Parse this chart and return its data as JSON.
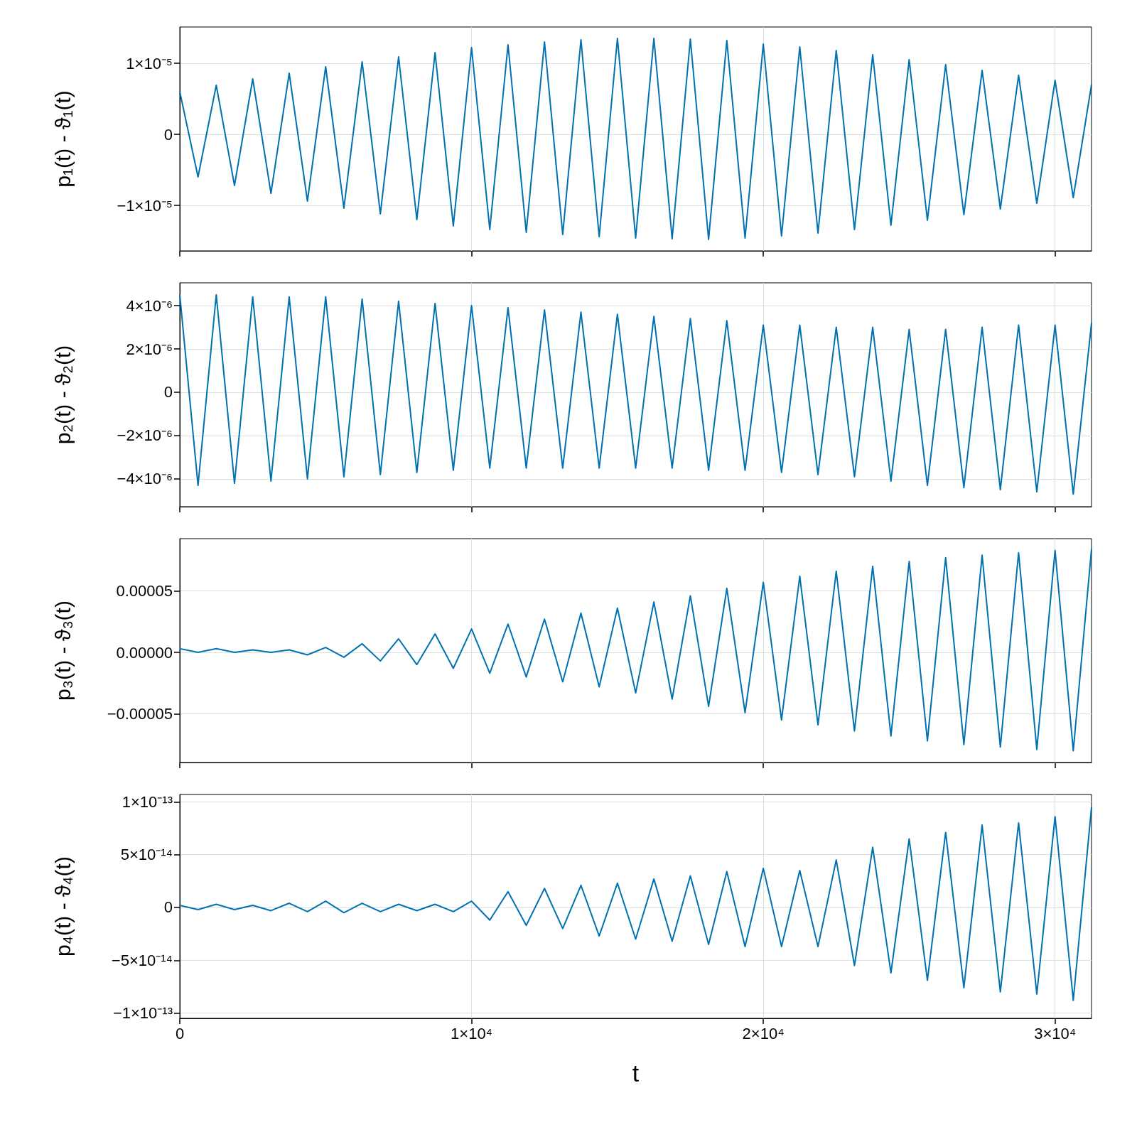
{
  "chart_data": [
    {
      "type": "line",
      "ylabel": "p₁(t) - ϑ₁(t)",
      "xlim": [
        0,
        31250
      ],
      "xticks": [
        {
          "value": 0,
          "label": null
        },
        {
          "value": 10000,
          "label": null
        },
        {
          "value": 20000,
          "label": null
        },
        {
          "value": 30000,
          "label": null
        }
      ],
      "ylim": [
        -1.64e-05,
        1.51e-05
      ],
      "yticks": [
        {
          "value": -1e-05,
          "label": "−1×10⁻⁵"
        },
        {
          "value": 0,
          "label": "0"
        },
        {
          "value": 1e-05,
          "label": "1×10⁻⁵"
        }
      ],
      "grid": true,
      "marker": "none",
      "tick_labels": "y",
      "x": [
        0,
        625,
        1250,
        1875,
        2500,
        3125,
        3750,
        4375,
        5000,
        5625,
        6250,
        6875,
        7500,
        8125,
        8750,
        9375,
        10000,
        10625,
        11250,
        11875,
        12500,
        13125,
        13750,
        14375,
        15000,
        15625,
        16250,
        16875,
        17500,
        18125,
        18750,
        19375,
        20000,
        20625,
        21250,
        21875,
        22500,
        23125,
        23750,
        24375,
        25000,
        25625,
        26250,
        26875,
        27500,
        28125,
        28750,
        29375,
        30000,
        30625,
        31250
      ],
      "series": [
        {
          "color": "#0072b2",
          "values": [
            6e-06,
            -6e-06,
            6.9e-06,
            -7.2e-06,
            7.8e-06,
            -8.3e-06,
            8.6e-06,
            -9.4e-06,
            9.5e-06,
            -1.04e-05,
            1.02e-05,
            -1.12e-05,
            1.09e-05,
            -1.2e-05,
            1.15e-05,
            -1.29e-05,
            1.22e-05,
            -1.34e-05,
            1.26e-05,
            -1.38e-05,
            1.3e-05,
            -1.41e-05,
            1.33e-05,
            -1.44e-05,
            1.35e-05,
            -1.46e-05,
            1.35e-05,
            -1.47e-05,
            1.34e-05,
            -1.48e-05,
            1.32e-05,
            -1.46e-05,
            1.27e-05,
            -1.43e-05,
            1.23e-05,
            -1.39e-05,
            1.18e-05,
            -1.34e-05,
            1.12e-05,
            -1.28e-05,
            1.05e-05,
            -1.21e-05,
            9.8e-06,
            -1.13e-05,
            9e-06,
            -1.05e-05,
            8.3e-06,
            -9.7e-06,
            7.6e-06,
            -8.9e-06,
            7e-06
          ]
        }
      ]
    },
    {
      "type": "line",
      "ylabel": "p₂(t) - ϑ₂(t)",
      "xlim": [
        0,
        31250
      ],
      "xticks": [
        {
          "value": 0,
          "label": null
        },
        {
          "value": 10000,
          "label": null
        },
        {
          "value": 20000,
          "label": null
        },
        {
          "value": 30000,
          "label": null
        }
      ],
      "ylim": [
        -5.28e-06,
        5.05e-06
      ],
      "yticks": [
        {
          "value": -4e-06,
          "label": "−4×10⁻⁶"
        },
        {
          "value": -2e-06,
          "label": "−2×10⁻⁶"
        },
        {
          "value": 0,
          "label": "0"
        },
        {
          "value": 2e-06,
          "label": "2×10⁻⁶"
        },
        {
          "value": 4e-06,
          "label": "4×10⁻⁶"
        }
      ],
      "grid": true,
      "marker": "none",
      "tick_labels": "y",
      "x": [
        0,
        625,
        1250,
        1875,
        2500,
        3125,
        3750,
        4375,
        5000,
        5625,
        6250,
        6875,
        7500,
        8125,
        8750,
        9375,
        10000,
        10625,
        11250,
        11875,
        12500,
        13125,
        13750,
        14375,
        15000,
        15625,
        16250,
        16875,
        17500,
        18125,
        18750,
        19375,
        20000,
        20625,
        21250,
        21875,
        22500,
        23125,
        23750,
        24375,
        25000,
        25625,
        26250,
        26875,
        27500,
        28125,
        28750,
        29375,
        30000,
        30625,
        31250
      ],
      "series": [
        {
          "color": "#0072b2",
          "values": [
            4.5e-06,
            -4.3e-06,
            4.5e-06,
            -4.2e-06,
            4.4e-06,
            -4.1e-06,
            4.4e-06,
            -4e-06,
            4.4e-06,
            -3.9e-06,
            4.3e-06,
            -3.8e-06,
            4.2e-06,
            -3.7e-06,
            4.1e-06,
            -3.6e-06,
            4e-06,
            -3.5e-06,
            3.9e-06,
            -3.5e-06,
            3.8e-06,
            -3.5e-06,
            3.7e-06,
            -3.5e-06,
            3.6e-06,
            -3.5e-06,
            3.5e-06,
            -3.5e-06,
            3.4e-06,
            -3.6e-06,
            3.3e-06,
            -3.6e-06,
            3.1e-06,
            -3.7e-06,
            3.1e-06,
            -3.8e-06,
            3e-06,
            -3.9e-06,
            3e-06,
            -4.1e-06,
            2.9e-06,
            -4.3e-06,
            2.9e-06,
            -4.4e-06,
            3e-06,
            -4.5e-06,
            3.1e-06,
            -4.6e-06,
            3.1e-06,
            -4.7e-06,
            3.2e-06
          ]
        }
      ]
    },
    {
      "type": "line",
      "ylabel": "p₃(t) - ϑ₃(t)",
      "xlim": [
        0,
        31250
      ],
      "xticks": [
        {
          "value": 0,
          "label": null
        },
        {
          "value": 10000,
          "label": null
        },
        {
          "value": 20000,
          "label": null
        },
        {
          "value": 30000,
          "label": null
        }
      ],
      "ylim": [
        -8.96e-05,
        9.25e-05
      ],
      "yticks": [
        {
          "value": -5e-05,
          "label": "−0.00005"
        },
        {
          "value": 0,
          "label": "0.00000"
        },
        {
          "value": 5e-05,
          "label": "0.00005"
        }
      ],
      "grid": true,
      "marker": "none",
      "tick_labels": "y",
      "x": [
        0,
        625,
        1250,
        1875,
        2500,
        3125,
        3750,
        4375,
        5000,
        5625,
        6250,
        6875,
        7500,
        8125,
        8750,
        9375,
        10000,
        10625,
        11250,
        11875,
        12500,
        13125,
        13750,
        14375,
        15000,
        15625,
        16250,
        16875,
        17500,
        18125,
        18750,
        19375,
        20000,
        20625,
        21250,
        21875,
        22500,
        23125,
        23750,
        24375,
        25000,
        25625,
        26250,
        26875,
        27500,
        28125,
        28750,
        29375,
        30000,
        30625,
        31250
      ],
      "series": [
        {
          "color": "#0072b2",
          "values": [
            3e-06,
            0,
            3e-06,
            0,
            2e-06,
            0,
            2e-06,
            -2e-06,
            4e-06,
            -4e-06,
            7e-06,
            -7e-06,
            1.1e-05,
            -1e-05,
            1.5e-05,
            -1.3e-05,
            1.9e-05,
            -1.7e-05,
            2.3e-05,
            -2e-05,
            2.7e-05,
            -2.4e-05,
            3.2e-05,
            -2.8e-05,
            3.6e-05,
            -3.3e-05,
            4.1e-05,
            -3.8e-05,
            4.6e-05,
            -4.4e-05,
            5.2e-05,
            -4.9e-05,
            5.7e-05,
            -5.5e-05,
            6.2e-05,
            -5.9e-05,
            6.6e-05,
            -6.4e-05,
            7e-05,
            -6.8e-05,
            7.4e-05,
            -7.2e-05,
            7.7e-05,
            -7.5e-05,
            7.9e-05,
            -7.7e-05,
            8.1e-05,
            -7.9e-05,
            8.3e-05,
            -8e-05,
            8.4e-05
          ]
        }
      ]
    },
    {
      "type": "line",
      "ylabel": "p₄(t) - ϑ₄(t)",
      "xlabel": "t",
      "xlim": [
        0,
        31250
      ],
      "xticks": [
        0,
        {
          "value": 10000,
          "label": "1×10⁴"
        },
        {
          "value": 20000,
          "label": "2×10⁴"
        },
        {
          "value": 30000,
          "label": "3×10⁴"
        }
      ],
      "ylim": [
        -1.05e-13,
        1.07e-13
      ],
      "yticks": [
        {
          "value": -1e-13,
          "label": "−1×10⁻¹³"
        },
        {
          "value": -5e-14,
          "label": "−5×10⁻¹⁴"
        },
        {
          "value": 0,
          "label": "0"
        },
        {
          "value": 5e-14,
          "label": "5×10⁻¹⁴"
        },
        {
          "value": 1e-13,
          "label": "1×10⁻¹³"
        }
      ],
      "grid": true,
      "marker": "none",
      "x": [
        0,
        625,
        1250,
        1875,
        2500,
        3125,
        3750,
        4375,
        5000,
        5625,
        6250,
        6875,
        7500,
        8125,
        8750,
        9375,
        10000,
        10625,
        11250,
        11875,
        12500,
        13125,
        13750,
        14375,
        15000,
        15625,
        16250,
        16875,
        17500,
        18125,
        18750,
        19375,
        20000,
        20625,
        21250,
        21875,
        22500,
        23125,
        23750,
        24375,
        25000,
        25625,
        26250,
        26875,
        27500,
        28125,
        28750,
        29375,
        30000,
        30625,
        31250
      ],
      "series": [
        {
          "color": "#0072b2",
          "values": [
            2e-15,
            -2e-15,
            3e-15,
            -2e-15,
            2e-15,
            -3e-15,
            4e-15,
            -4e-15,
            6e-15,
            -5e-15,
            4e-15,
            -4e-15,
            3e-15,
            -3e-15,
            3e-15,
            -4e-15,
            6e-15,
            -1.2e-14,
            1.5e-14,
            -1.7e-14,
            1.8e-14,
            -2e-14,
            2.1e-14,
            -2.7e-14,
            2.3e-14,
            -3e-14,
            2.7e-14,
            -3.2e-14,
            3e-14,
            -3.5e-14,
            3.4e-14,
            -3.7e-14,
            3.7e-14,
            -3.7e-14,
            3.5e-14,
            -3.7e-14,
            4.5e-14,
            -5.5e-14,
            5.7e-14,
            -6.2e-14,
            6.5e-14,
            -6.9e-14,
            7.1e-14,
            -7.6e-14,
            7.8e-14,
            -8e-14,
            8e-14,
            -8.2e-14,
            8.6e-14,
            -8.8e-14,
            9.5e-14
          ]
        }
      ]
    }
  ]
}
